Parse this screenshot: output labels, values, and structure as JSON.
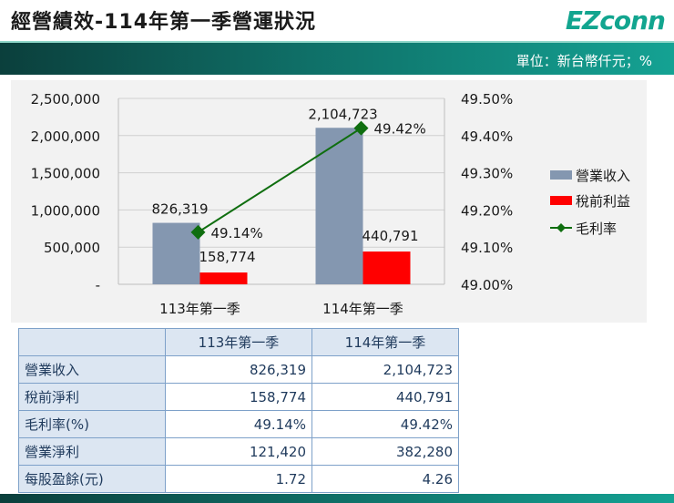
{
  "header": {
    "title": "經營績效-114年第一季營運狀況",
    "logo": "EZconn",
    "unit": "單位：新台幣仟元；%"
  },
  "colors": {
    "revenue": "#8497b0",
    "pretax": "#ff0000",
    "margin": "#0f6e0f"
  },
  "chart_data": {
    "type": "bar",
    "categories": [
      "113年第一季",
      "114年第一季"
    ],
    "series": [
      {
        "name": "營業收入",
        "type": "bar",
        "axis": "left",
        "values": [
          826319,
          2104723
        ],
        "labels": [
          "826,319",
          "2,104,723"
        ]
      },
      {
        "name": "稅前利益",
        "type": "bar",
        "axis": "left",
        "values": [
          158774,
          440791
        ],
        "labels": [
          "158,774",
          "440,791"
        ]
      },
      {
        "name": "毛利率",
        "type": "line",
        "axis": "right",
        "values": [
          49.14,
          49.42
        ],
        "labels": [
          "49.14%",
          "49.42%"
        ]
      }
    ],
    "ylim": [
      0,
      2500000
    ],
    "y_ticks": [
      "-",
      "500,000",
      "1,000,000",
      "1,500,000",
      "2,000,000",
      "2,500,000"
    ],
    "y2lim": [
      49.0,
      49.5
    ],
    "y2_ticks": [
      "49.00%",
      "49.10%",
      "49.20%",
      "49.30%",
      "49.40%",
      "49.50%"
    ],
    "legend": "right"
  },
  "table": {
    "headers": [
      "",
      "113年第一季",
      "114年第一季"
    ],
    "rows": [
      {
        "label": "營業收入",
        "values": [
          "826,319",
          "2,104,723"
        ]
      },
      {
        "label": "稅前淨利",
        "values": [
          "158,774",
          "440,791"
        ]
      },
      {
        "label": "毛利率(%)",
        "values": [
          "49.14%",
          "49.42%"
        ]
      },
      {
        "label": "營業淨利",
        "values": [
          "121,420",
          "382,280"
        ]
      },
      {
        "label": "每股盈餘(元)",
        "values": [
          "1.72",
          "4.26"
        ]
      }
    ]
  }
}
